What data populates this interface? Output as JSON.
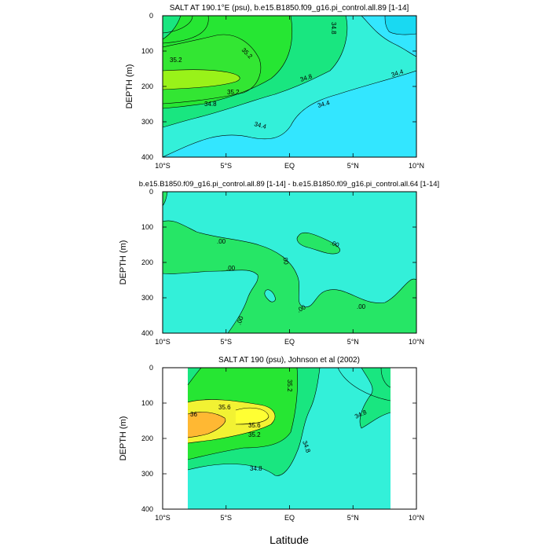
{
  "chart_data": [
    {
      "type": "contour",
      "title": "SALT AT 190.1°E (psu), b.e15.B1850.f09_g16.pi_control.all.89 [1-14]",
      "xlabel": "",
      "ylabel": "DEPTH (m)",
      "xlim": [
        -10,
        10
      ],
      "ylim": [
        400,
        0
      ],
      "x_ticks": [
        "10°S",
        "5°S",
        "EQ",
        "5°N",
        "10°N"
      ],
      "y_ticks": [
        "0",
        "100",
        "200",
        "300",
        "400"
      ],
      "contour_labels": [
        "35.2",
        "35.2",
        "35.2",
        "34.8",
        "34.8",
        "34.8",
        "34.4",
        "34.4",
        "34.4"
      ],
      "colors": {
        "low": "#33e6ff",
        "mid": "#33f0d9",
        "mid2": "#19e680",
        "high": "#26e633",
        "peak": "#99f219"
      }
    },
    {
      "type": "contour",
      "title": "b.e15.B1850.f09_g16.pi_control.all.89 [1-14] - b.e15.B1850.f09_g16.pi_control.all.64 [1-14]",
      "xlabel": "",
      "ylabel": "DEPTH (m)",
      "xlim": [
        -10,
        10
      ],
      "ylim": [
        400,
        0
      ],
      "x_ticks": [
        "10°S",
        "5°S",
        "EQ",
        "5°N",
        "10°N"
      ],
      "y_ticks": [
        "0",
        "100",
        "200",
        "300",
        "400"
      ],
      "contour_labels": [
        ".00",
        ".00",
        ".00",
        ".00",
        ".00",
        ".00",
        ".00"
      ],
      "colors": {
        "base": "#33f0d9",
        "pos": "#26e666"
      }
    },
    {
      "type": "contour",
      "title": "SALT AT 190 (psu), Johnson et al (2002)",
      "xlabel": "Latitude",
      "ylabel": "DEPTH (m)",
      "xlim": [
        -10,
        10
      ],
      "ylim": [
        400,
        0
      ],
      "data_extent_lat": [
        -8,
        8
      ],
      "x_ticks": [
        "10°S",
        "5°S",
        "EQ",
        "5°N",
        "10°N"
      ],
      "y_ticks": [
        "0",
        "100",
        "200",
        "300",
        "400"
      ],
      "contour_labels": [
        "35.6",
        "35.6",
        "36",
        "35.2",
        "35.2",
        "34.8",
        "34.8",
        "34.8"
      ],
      "colors": {
        "low": "#33f0d9",
        "mid": "#19e680",
        "high": "#26e633",
        "peak": "#f2f233",
        "max": "#ffb833"
      }
    }
  ]
}
